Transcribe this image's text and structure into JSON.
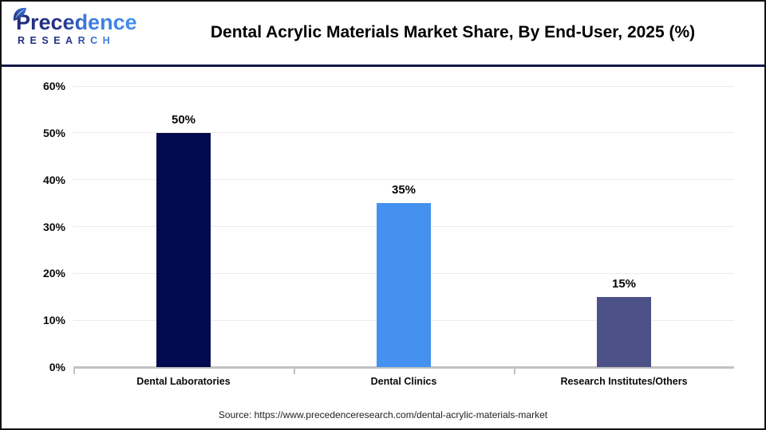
{
  "header": {
    "logo": {
      "word": "Precedence",
      "sub": "RESEARCH"
    },
    "title": "Dental Acrylic Materials Market Share, By End-User, 2025 (%)"
  },
  "chart_data": {
    "type": "bar",
    "categories": [
      "Dental Laboratories",
      "Dental Clinics",
      "Research Institutes/Others"
    ],
    "values": [
      50,
      35,
      15
    ],
    "value_labels": [
      "50%",
      "35%",
      "15%"
    ],
    "bar_colors": [
      "#03094e",
      "#4591ef",
      "#4c5187"
    ],
    "title": "Dental Acrylic Materials Market Share, By End-User, 2025 (%)",
    "xlabel": "",
    "ylabel": "",
    "ylim": [
      0,
      60
    ],
    "ytick_step": 10,
    "ytick_labels": [
      "0%",
      "10%",
      "20%",
      "30%",
      "40%",
      "50%",
      "60%"
    ],
    "grid": true,
    "legend": false
  },
  "colors": {
    "header_divider": "#0f1846",
    "gridline": "#ebebeb",
    "axis": "#c2c2c2",
    "logo_navy": "#222c7c",
    "logo_blue": "#4590ee"
  },
  "footer": {
    "source": "Source: https://www.precedenceresearch.com/dental-acrylic-materials-market"
  }
}
